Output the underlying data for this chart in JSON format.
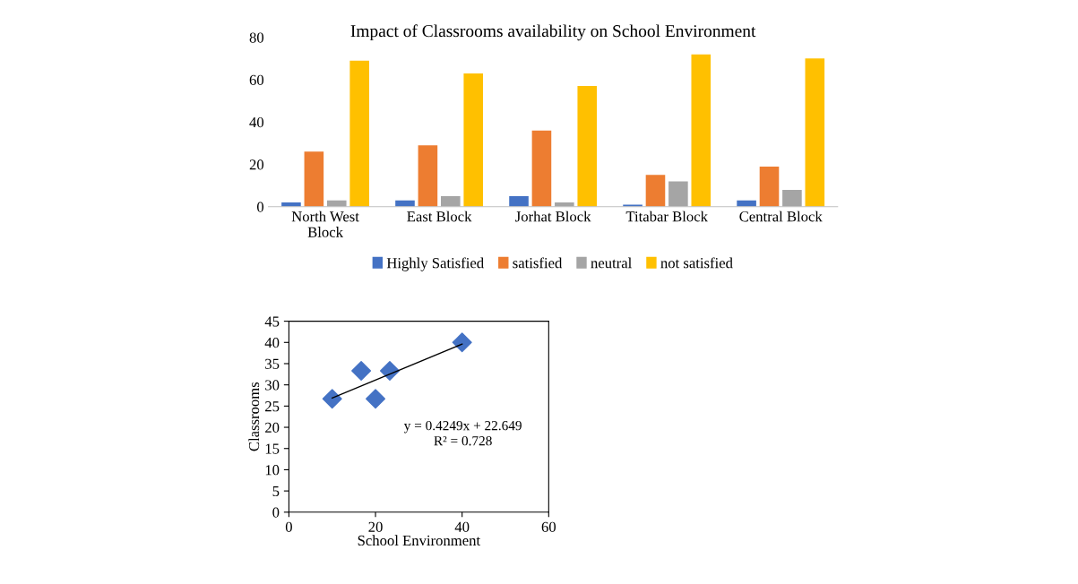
{
  "chart_data": [
    {
      "type": "bar",
      "title": "Impact of Classrooms availability on School Environment",
      "categories": [
        "North West Block",
        "East Block",
        "Jorhat Block",
        "Titabar Block",
        "Central Block"
      ],
      "series": [
        {
          "name": "Highly Satisfied",
          "color": "#4472c4",
          "values": [
            2,
            3,
            5,
            1,
            3
          ]
        },
        {
          "name": "satisfied",
          "color": "#ed7d31",
          "values": [
            26,
            29,
            36,
            15,
            19
          ]
        },
        {
          "name": "neutral",
          "color": "#a5a5a5",
          "values": [
            3,
            5,
            2,
            12,
            8
          ]
        },
        {
          "name": "not satisfied",
          "color": "#ffc000",
          "values": [
            69,
            63,
            57,
            72,
            70
          ]
        }
      ],
      "ylim": [
        0,
        80
      ],
      "yticks": [
        0,
        20,
        40,
        60,
        80
      ],
      "legend": "bottom",
      "grid": false
    },
    {
      "type": "scatter",
      "xlabel": "School Environment",
      "ylabel": "Classrooms",
      "series": [
        {
          "color": "#4472c4",
          "marker": "diamond",
          "x": [
            10,
            16.7,
            20,
            23.3,
            40
          ],
          "values": [
            26.7,
            33.3,
            26.7,
            33.3,
            40
          ]
        },
        {
          "type": "line",
          "marker": "none",
          "color": "#000000",
          "x": [
            10,
            40
          ],
          "values": [
            26.9,
            39.6
          ]
        }
      ],
      "xlim": [
        0,
        60
      ],
      "xticks": [
        0,
        20,
        40,
        60
      ],
      "ylim": [
        0,
        45
      ],
      "yticks": [
        0,
        5,
        10,
        15,
        20,
        25,
        30,
        35,
        40,
        45
      ],
      "annotations": [
        "y = 0.4249x + 22.649",
        "R² = 0.728"
      ],
      "grid": false
    }
  ]
}
